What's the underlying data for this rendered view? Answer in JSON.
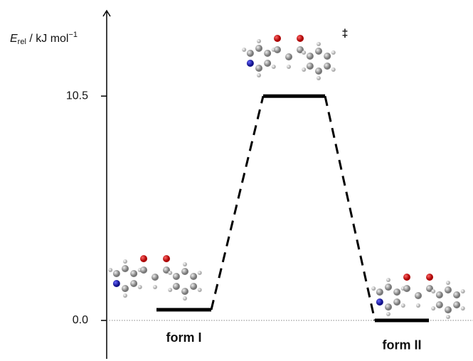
{
  "chart_data": {
    "type": "energy",
    "ylabel": [
      "E",
      "rel",
      " / kJ mol",
      "−1"
    ],
    "categories": [
      "form I",
      null,
      "form II"
    ],
    "values": [
      0.5,
      10.5,
      0.0
    ],
    "annotation": "‡",
    "ylim": [
      -1.8,
      14.5
    ],
    "yticks": [
      {
        "value": 0,
        "label": "0.0"
      },
      10.5
    ],
    "reference_line": 0,
    "color": "#000000"
  }
}
